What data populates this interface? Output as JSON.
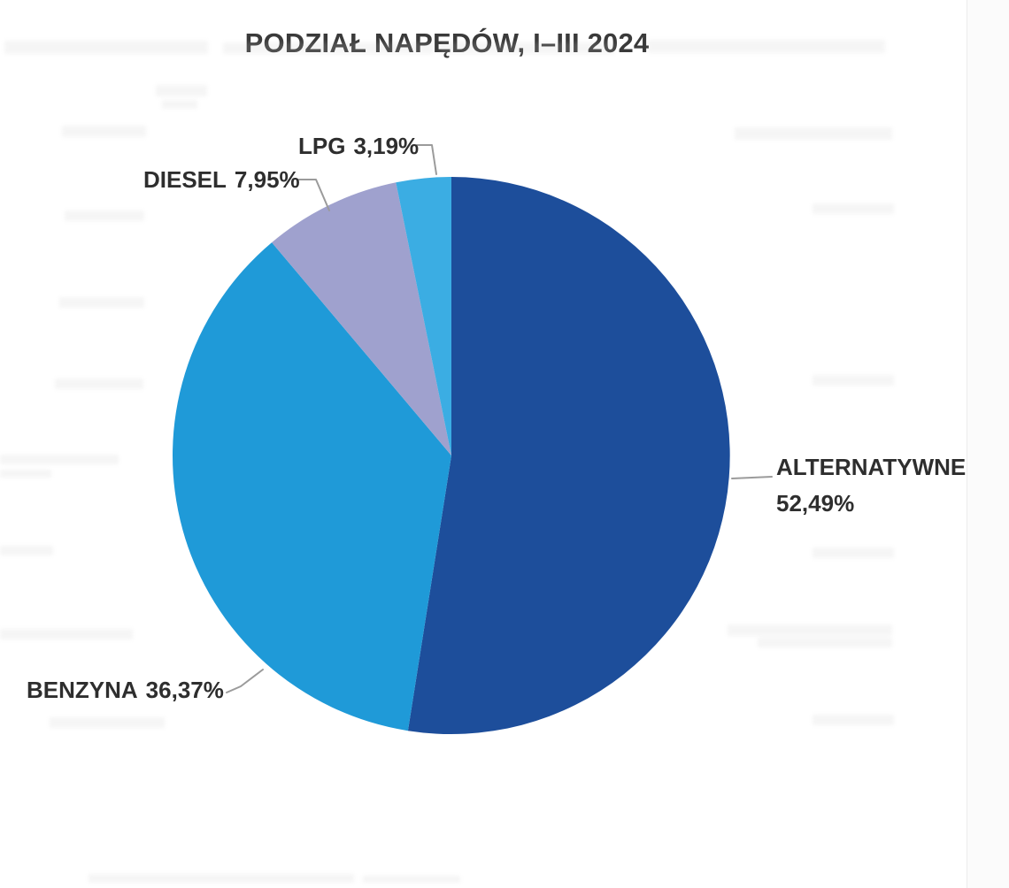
{
  "chart_data": {
    "type": "pie",
    "title": "PODZIAŁ NAPĘDÓW, I–III 2024",
    "direction": "clockwise",
    "start_angle_deg": 0,
    "legend": "none",
    "label_style": "outside-with-leader-lines",
    "background": "#ffffff",
    "leader_line_color": "#9b9b9b",
    "slices": [
      {
        "label": "ALTERNATYWNE",
        "value_pct": 52.49,
        "display": "52,49%",
        "color": "#1d4e9b"
      },
      {
        "label": "BENZYNA",
        "value_pct": 36.37,
        "display": "36,37%",
        "color": "#1f9ad8"
      },
      {
        "label": "DIESEL",
        "value_pct": 7.95,
        "display": "7,95%",
        "color": "#9fa1ce"
      },
      {
        "label": "LPG",
        "value_pct": 3.19,
        "display": "3,19%",
        "color": "#3badE3"
      }
    ]
  }
}
